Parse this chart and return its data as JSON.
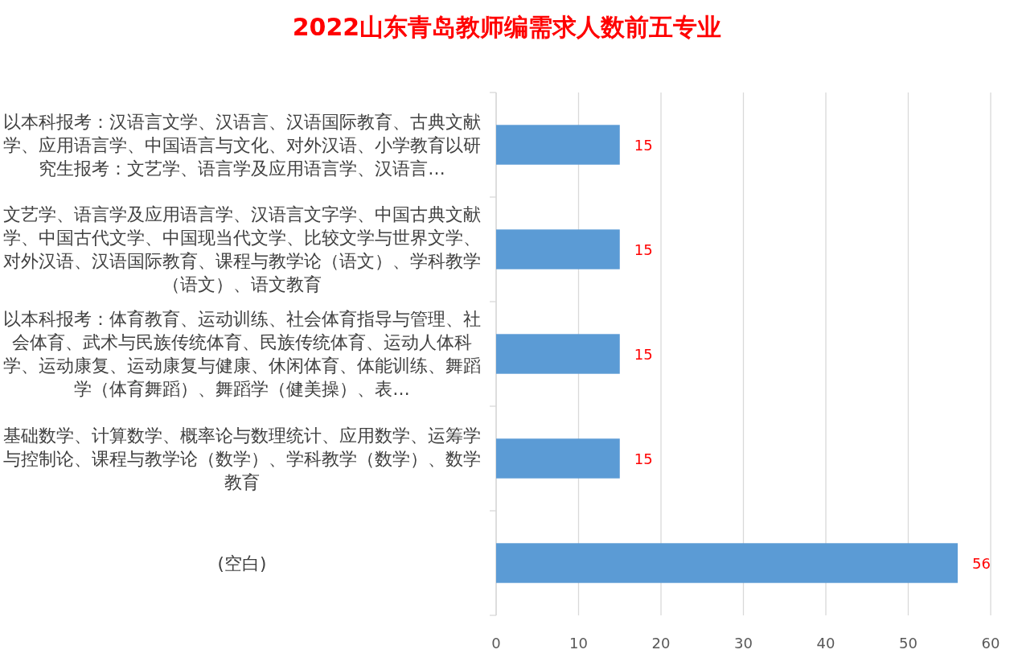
{
  "chart_data": {
    "type": "bar",
    "orientation": "horizontal",
    "title": "2022山东青岛教师编需求人数前五专业",
    "categories": [
      "以本科报考：汉语言文学、汉语言、汉语国际教育、古典文献学、应用语言学、中国语言与文化、对外汉语、小学教育以研究生报考：文艺学、语言学及应用语言学、汉语言…",
      "文艺学、语言学及应用语言学、汉语言文字学、中国古典文献学、中国古代文学、中国现当代文学、比较文学与世界文学、对外汉语、汉语国际教育、课程与教学论（语文）、学科教学（语文）、语文教育",
      "以本科报考：体育教育、运动训练、社会体育指导与管理、社会体育、武术与民族传统体育、民族传统体育、运动人体科学、运动康复、运动康复与健康、休闲体育、体能训练、舞蹈学（体育舞蹈）、舞蹈学（健美操）、表…",
      "基础数学、计算数学、概率论与数理统计、应用数学、运筹学与控制论、课程与教学论（数学）、学科教学（数学）、数学教育",
      "(空白)"
    ],
    "values": [
      15,
      15,
      15,
      15,
      56
    ],
    "color": "#5b9bd5",
    "xlim": [
      0,
      60
    ],
    "xticks": [
      0,
      10,
      20,
      30,
      40,
      50,
      60
    ],
    "grid": "x",
    "data_labels": true
  }
}
